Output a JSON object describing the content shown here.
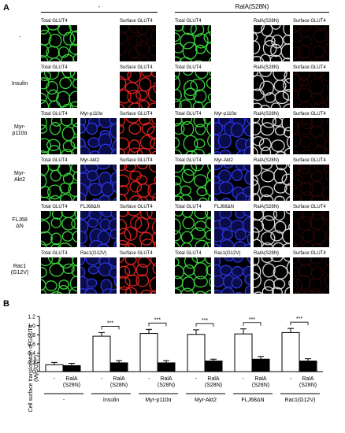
{
  "panel_a": {
    "letter": "A",
    "groups": [
      {
        "label": "-"
      },
      {
        "label": "RalA(S28N)"
      }
    ],
    "rows": [
      {
        "label": "-",
        "marker": "",
        "ctrl": [
          {
            "label": "Total  GLUT4",
            "color": "green"
          },
          {
            "label": "",
            "color": "white"
          },
          {
            "label": "Surface GLUT4",
            "color": "red_dark"
          }
        ],
        "ralA": [
          {
            "label": "Total  GLUT4",
            "color": "green"
          },
          {
            "label": "RalA(S28N)",
            "color": "gray"
          },
          {
            "label": "Surface GLUT4",
            "color": "red_dark"
          }
        ]
      },
      {
        "label": "Insulin",
        "ctrl": [
          {
            "label": "Total  GLUT4",
            "color": "green"
          },
          {
            "label": "",
            "color": "white"
          },
          {
            "label": "Surface GLUT4",
            "color": "red"
          }
        ],
        "ralA": [
          {
            "label": "Total  GLUT4",
            "color": "green"
          },
          {
            "label": "RalA(S28N)",
            "color": "gray"
          },
          {
            "label": "Surface GLUT4",
            "color": "red_dark"
          }
        ]
      },
      {
        "label": "Myr-\np110α",
        "ctrl": [
          {
            "label": "Total  GLUT4",
            "color": "green"
          },
          {
            "label": "Myr-p110α",
            "color": "blue"
          },
          {
            "label": "Surface GLUT4",
            "color": "red"
          }
        ],
        "ralA": [
          {
            "label": "Total  GLUT4",
            "color": "green"
          },
          {
            "label": "Myr-p110α",
            "color": "blue"
          },
          {
            "label": "RalA(S28N)",
            "color": "gray"
          },
          {
            "label": "Surface GLUT4",
            "color": "red_dark"
          }
        ]
      },
      {
        "label": "Myr-\nAkt2",
        "ctrl": [
          {
            "label": "Total  GLUT4",
            "color": "green"
          },
          {
            "label": "Myr-Akt2",
            "color": "blue"
          },
          {
            "label": "Surface GLUT4",
            "color": "red"
          }
        ],
        "ralA": [
          {
            "label": "Total  GLUT4",
            "color": "green"
          },
          {
            "label": "Myr-Akt2",
            "color": "blue"
          },
          {
            "label": "RalA(S28N)",
            "color": "gray"
          },
          {
            "label": "Surface GLUT4",
            "color": "red_dark"
          }
        ]
      },
      {
        "label": "FLJ68\nΔN",
        "ctrl": [
          {
            "label": "Total  GLUT4",
            "color": "green"
          },
          {
            "label": "FLJ68ΔN",
            "color": "blue"
          },
          {
            "label": "Surface GLUT4",
            "color": "red"
          }
        ],
        "ralA": [
          {
            "label": "Total  GLUT4",
            "color": "green"
          },
          {
            "label": "FLJ68ΔN",
            "color": "blue"
          },
          {
            "label": "RalA(S28N)",
            "color": "gray"
          },
          {
            "label": "Surface GLUT4",
            "color": "red_dark"
          }
        ]
      },
      {
        "label": "Rac1\n(G12V)",
        "ctrl": [
          {
            "label": "Total  GLUT4",
            "color": "green"
          },
          {
            "label": "Rac1(G12V)",
            "color": "blue"
          },
          {
            "label": "Surface GLUT4",
            "color": "red"
          }
        ],
        "ralA": [
          {
            "label": "Total  GLUT4",
            "color": "green"
          },
          {
            "label": "Rac1(G12V)",
            "color": "blue"
          },
          {
            "label": "RalA(S28N)",
            "color": "gray"
          },
          {
            "label": "Surface GLUT4",
            "color": "red_dark"
          }
        ]
      }
    ]
  },
  "chart_data": {
    "type": "bar",
    "letter": "B",
    "ylabel_lines": [
      "Cell surface translocation of GLUT4",
      "(Myc/GFP)"
    ],
    "ylim": [
      0,
      1.2
    ],
    "yticks": [
      "0",
      "0.2",
      "0.4",
      "0.6",
      "0.8",
      "1.0",
      "1.2"
    ],
    "groups": [
      {
        "label": "-",
        "bars": [
          {
            "sub": [
              "-"
            ],
            "value": 0.15,
            "err": 0.05,
            "fill": "white"
          },
          {
            "sub": [
              "RalA",
              "(S28N)"
            ],
            "value": 0.13,
            "err": 0.05,
            "fill": "black"
          }
        ],
        "sig": ""
      },
      {
        "label": "Insulin",
        "bars": [
          {
            "sub": [
              "-"
            ],
            "value": 0.77,
            "err": 0.08,
            "fill": "white"
          },
          {
            "sub": [
              "RalA",
              "(S28N)"
            ],
            "value": 0.19,
            "err": 0.05,
            "fill": "black"
          }
        ],
        "sig": "***"
      },
      {
        "label": "Myr-p110α",
        "bars": [
          {
            "sub": [
              "-"
            ],
            "value": 0.83,
            "err": 0.09,
            "fill": "white"
          },
          {
            "sub": [
              "RalA",
              "(S28N)"
            ],
            "value": 0.19,
            "err": 0.05,
            "fill": "black"
          }
        ],
        "sig": "***"
      },
      {
        "label": "Myr-Akt2",
        "bars": [
          {
            "sub": [
              "-"
            ],
            "value": 0.81,
            "err": 0.1,
            "fill": "white"
          },
          {
            "sub": [
              "RalA",
              "(S28N)"
            ],
            "value": 0.23,
            "err": 0.04,
            "fill": "black"
          }
        ],
        "sig": "***"
      },
      {
        "label": "FLJ68ΔN",
        "bars": [
          {
            "sub": [
              "-"
            ],
            "value": 0.82,
            "err": 0.11,
            "fill": "white"
          },
          {
            "sub": [
              "RalA",
              "(S28N)"
            ],
            "value": 0.27,
            "err": 0.06,
            "fill": "black"
          }
        ],
        "sig": "***"
      },
      {
        "label": "Rac1(G12V)",
        "bars": [
          {
            "sub": [
              "-"
            ],
            "value": 0.85,
            "err": 0.09,
            "fill": "white"
          },
          {
            "sub": [
              "RalA",
              "(S28N)"
            ],
            "value": 0.23,
            "err": 0.05,
            "fill": "black"
          }
        ],
        "sig": "***"
      }
    ]
  }
}
